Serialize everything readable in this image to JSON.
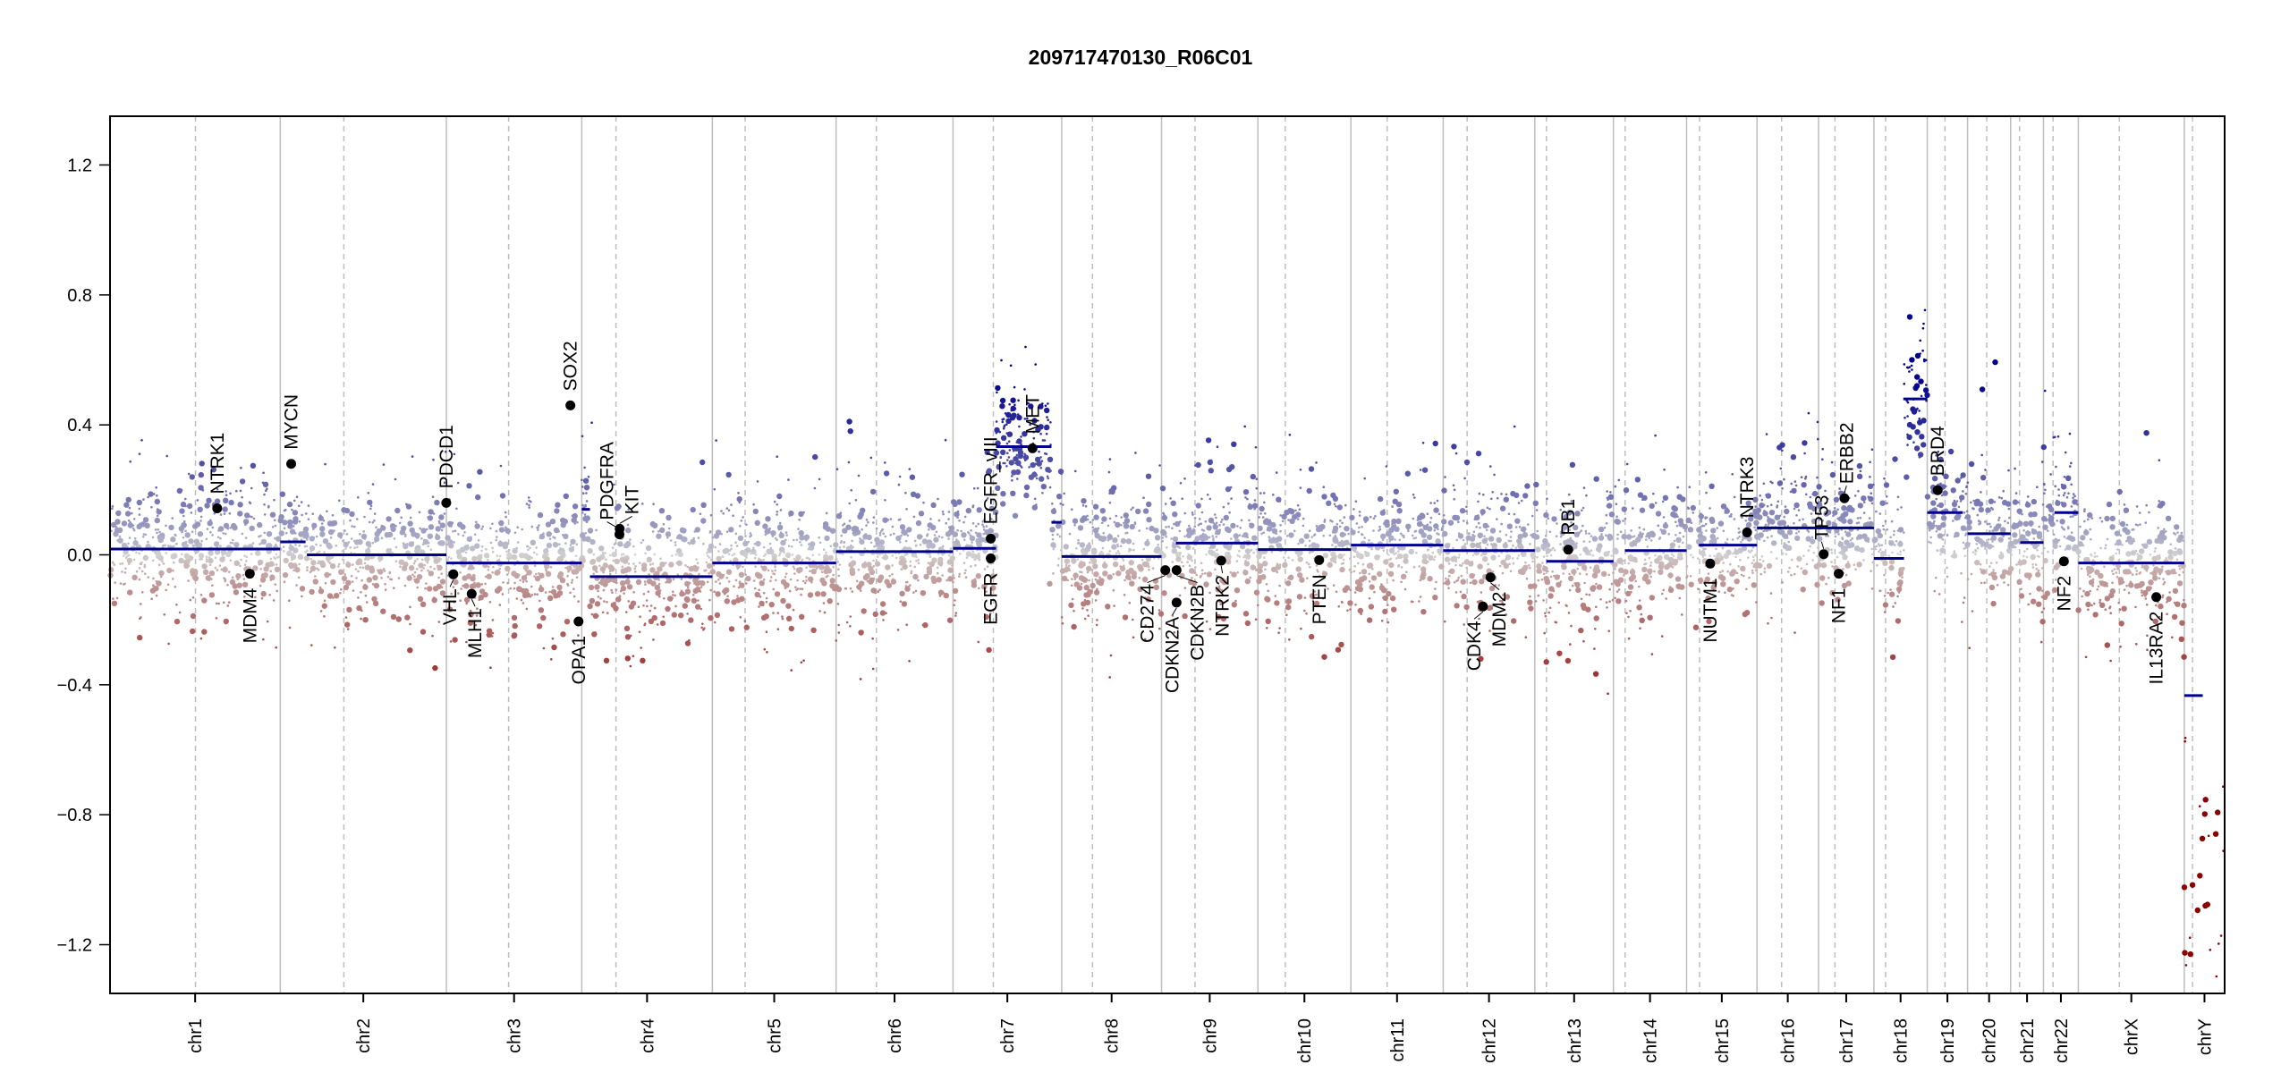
{
  "chart_data": {
    "type": "scatter",
    "title": "209717470130_R06C01",
    "xlabel": "",
    "ylabel": "",
    "ylim": [
      -1.35,
      1.35
    ],
    "yticks": [
      "-1.2",
      "-0.8",
      "-0.4",
      "0.0",
      "0.4",
      "0.8",
      "1.2"
    ],
    "grid": false,
    "colors": {
      "gain": "#00008b",
      "loss": "#8b0000",
      "neutral": "#d3d3d3",
      "segment": "#00008b",
      "gene": "#000000",
      "boundary": "#bebebe"
    },
    "chromosomes": [
      {
        "name": "chr1",
        "length": 249,
        "centromere": 125
      },
      {
        "name": "chr2",
        "length": 243,
        "centromere": 93
      },
      {
        "name": "chr3",
        "length": 198,
        "centromere": 91
      },
      {
        "name": "chr4",
        "length": 191,
        "centromere": 50
      },
      {
        "name": "chr5",
        "length": 181,
        "centromere": 48
      },
      {
        "name": "chr6",
        "length": 171,
        "centromere": 59
      },
      {
        "name": "chr7",
        "length": 159,
        "centromere": 59
      },
      {
        "name": "chr8",
        "length": 146,
        "centromere": 45
      },
      {
        "name": "chr9",
        "length": 141,
        "centromere": 49
      },
      {
        "name": "chr10",
        "length": 136,
        "centromere": 40
      },
      {
        "name": "chr11",
        "length": 135,
        "centromere": 53
      },
      {
        "name": "chr12",
        "length": 134,
        "centromere": 35
      },
      {
        "name": "chr13",
        "length": 115,
        "centromere": 17
      },
      {
        "name": "chr14",
        "length": 107,
        "centromere": 17
      },
      {
        "name": "chr15",
        "length": 103,
        "centromere": 19
      },
      {
        "name": "chr16",
        "length": 90,
        "centromere": 36
      },
      {
        "name": "chr17",
        "length": 81,
        "centromere": 24
      },
      {
        "name": "chr18",
        "length": 78,
        "centromere": 17
      },
      {
        "name": "chr19",
        "length": 59,
        "centromere": 26
      },
      {
        "name": "chr20",
        "length": 63,
        "centromere": 28
      },
      {
        "name": "chr21",
        "length": 48,
        "centromere": 13
      },
      {
        "name": "chr22",
        "length": 51,
        "centromere": 14
      },
      {
        "name": "chrX",
        "length": 155,
        "centromere": 60
      },
      {
        "name": "chrY",
        "length": 59,
        "centromere": 12
      }
    ],
    "segments": [
      {
        "chr": "chr1",
        "start": 0,
        "end": 249,
        "value": 0.018
      },
      {
        "chr": "chr2",
        "start": 0,
        "end": 37,
        "value": 0.04
      },
      {
        "chr": "chr2",
        "start": 39,
        "end": 243,
        "value": 0.0
      },
      {
        "chr": "chr3",
        "start": 0,
        "end": 198,
        "value": -0.025
      },
      {
        "chr": "chr4",
        "start": 0,
        "end": 12,
        "value": 0.14
      },
      {
        "chr": "chr4",
        "start": 12,
        "end": 191,
        "value": -0.067
      },
      {
        "chr": "chr5",
        "start": 0,
        "end": 181,
        "value": -0.025
      },
      {
        "chr": "chr6",
        "start": 0,
        "end": 171,
        "value": 0.01
      },
      {
        "chr": "chr7",
        "start": 0,
        "end": 63,
        "value": 0.02
      },
      {
        "chr": "chr7",
        "start": 63,
        "end": 144,
        "value": 0.333
      },
      {
        "chr": "chr7",
        "start": 144,
        "end": 159,
        "value": 0.1
      },
      {
        "chr": "chr8",
        "start": 0,
        "end": 146,
        "value": -0.005
      },
      {
        "chr": "chr9",
        "start": 21,
        "end": 141,
        "value": 0.036
      },
      {
        "chr": "chr10",
        "start": 0,
        "end": 136,
        "value": 0.016
      },
      {
        "chr": "chr11",
        "start": 0,
        "end": 135,
        "value": 0.03
      },
      {
        "chr": "chr12",
        "start": 0,
        "end": 134,
        "value": 0.013
      },
      {
        "chr": "chr13",
        "start": 17,
        "end": 115,
        "value": -0.02
      },
      {
        "chr": "chr14",
        "start": 17,
        "end": 107,
        "value": 0.013
      },
      {
        "chr": "chr15",
        "start": 18,
        "end": 103,
        "value": 0.03
      },
      {
        "chr": "chr16",
        "start": 0,
        "end": 90,
        "value": 0.083
      },
      {
        "chr": "chr17",
        "start": 0,
        "end": 81,
        "value": 0.083
      },
      {
        "chr": "chr18",
        "start": 0,
        "end": 44,
        "value": -0.011
      },
      {
        "chr": "chr18",
        "start": 43,
        "end": 78,
        "value": 0.48
      },
      {
        "chr": "chr19",
        "start": 0,
        "end": 52,
        "value": 0.13
      },
      {
        "chr": "chr20",
        "start": 0,
        "end": 63,
        "value": 0.065
      },
      {
        "chr": "chr21",
        "start": 14,
        "end": 48,
        "value": 0.038
      },
      {
        "chr": "chr22",
        "start": 16,
        "end": 51,
        "value": 0.13
      },
      {
        "chr": "chrX",
        "start": 0,
        "end": 155,
        "value": -0.025
      },
      {
        "chr": "chrY",
        "start": 0,
        "end": 27,
        "value": -0.433
      }
    ],
    "genes": [
      {
        "name": "NTRK1",
        "chr": "chr1",
        "pos": 156.8,
        "value": 0.143
      },
      {
        "name": "MDM4",
        "chr": "chr1",
        "pos": 204.5,
        "value": -0.058
      },
      {
        "name": "MYCN",
        "chr": "chr2",
        "pos": 16,
        "value": 0.28
      },
      {
        "name": "PDCD1",
        "chr": "chr2",
        "pos": 242.8,
        "value": 0.16
      },
      {
        "name": "VHL",
        "chr": "chr3",
        "pos": 10.2,
        "value": -0.06
      },
      {
        "name": "MLH1",
        "chr": "chr3",
        "pos": 37,
        "value": -0.12
      },
      {
        "name": "SOX2",
        "chr": "chr3",
        "pos": 181.4,
        "value": 0.46
      },
      {
        "name": "OPA1",
        "chr": "chr3",
        "pos": 193.3,
        "value": -0.205
      },
      {
        "name": "KIT",
        "chr": "chr4",
        "pos": 55.5,
        "value": 0.08
      },
      {
        "name": "PDGFRA",
        "chr": "chr4",
        "pos": 55.1,
        "value": 0.063
      },
      {
        "name": "EGFR_vIII",
        "chr": "chr7",
        "pos": 55.2,
        "value": 0.05
      },
      {
        "name": "EGFR",
        "chr": "chr7",
        "pos": 55.2,
        "value": -0.011
      },
      {
        "name": "MET",
        "chr": "chr7",
        "pos": 116.3,
        "value": 0.328
      },
      {
        "name": "CD274",
        "chr": "chr9",
        "pos": 5.5,
        "value": -0.047
      },
      {
        "name": "CDKN2A",
        "chr": "chr9",
        "pos": 21.97,
        "value": -0.147
      },
      {
        "name": "CDKN2B",
        "chr": "chr9",
        "pos": 22.0,
        "value": -0.047
      },
      {
        "name": "NTRK2",
        "chr": "chr9",
        "pos": 87.3,
        "value": -0.018
      },
      {
        "name": "PTEN",
        "chr": "chr10",
        "pos": 89.6,
        "value": -0.016
      },
      {
        "name": "CDK4",
        "chr": "chr12",
        "pos": 58.1,
        "value": -0.159
      },
      {
        "name": "MDM2",
        "chr": "chr12",
        "pos": 69.2,
        "value": -0.069
      },
      {
        "name": "RB1",
        "chr": "chr13",
        "pos": 48.9,
        "value": 0.016
      },
      {
        "name": "NUTM1",
        "chr": "chr15",
        "pos": 34.6,
        "value": -0.027
      },
      {
        "name": "NTRK3",
        "chr": "chr15",
        "pos": 88.5,
        "value": 0.069
      },
      {
        "name": "TP53",
        "chr": "chr17",
        "pos": 7.5,
        "value": 0.002
      },
      {
        "name": "NF1",
        "chr": "chr17",
        "pos": 29.5,
        "value": -0.058
      },
      {
        "name": "ERBB2",
        "chr": "chr17",
        "pos": 37.8,
        "value": 0.174
      },
      {
        "name": "BRD4",
        "chr": "chr19",
        "pos": 15.3,
        "value": 0.199
      },
      {
        "name": "NF2",
        "chr": "chr22",
        "pos": 29.9,
        "value": -0.02
      },
      {
        "name": "IL13RA2",
        "chr": "chrX",
        "pos": 114,
        "value": -0.13
      }
    ]
  }
}
